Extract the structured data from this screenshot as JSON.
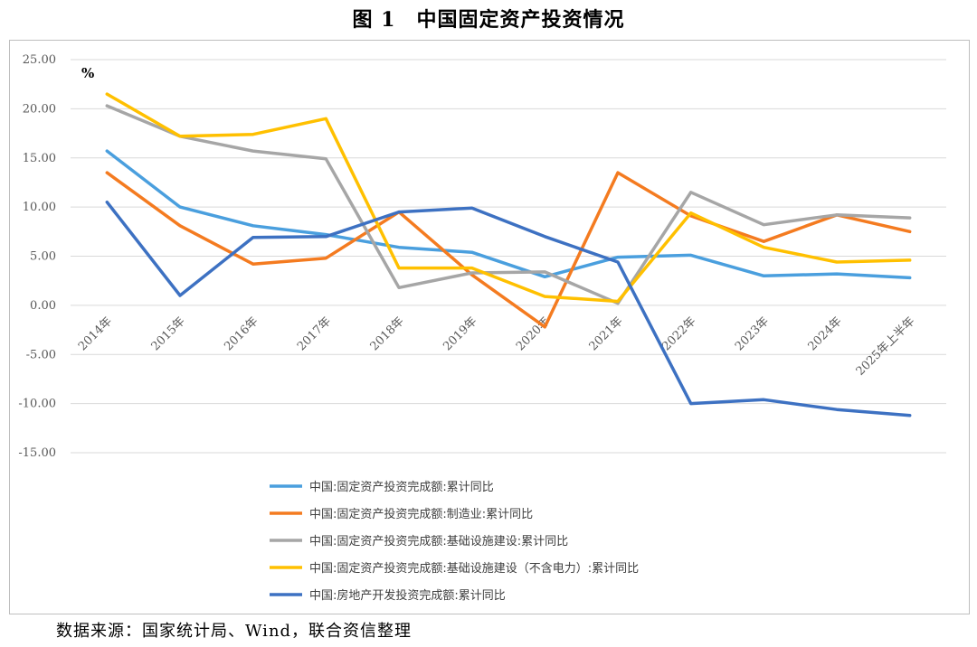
{
  "figure_title": "图 1　中国固定资产投资情况",
  "source_note": "数据来源：国家统计局、Wind，联合资信整理",
  "chart_data": {
    "type": "line",
    "unit_label": "%",
    "ylim": [
      -15,
      25
    ],
    "ytick_labels": [
      "25.00",
      "20.00",
      "15.00",
      "10.00",
      "5.00",
      "0.00",
      "-5.00",
      "-10.00",
      "-15.00"
    ],
    "ytick_values": [
      25,
      20,
      15,
      10,
      5,
      0,
      -5,
      -10,
      -15
    ],
    "categories": [
      "2014年",
      "2015年",
      "2016年",
      "2017年",
      "2018年",
      "2019年",
      "2020年",
      "2021年",
      "2022年",
      "2023年",
      "2024年",
      "2025年上半年"
    ],
    "grid": true,
    "legend_position": "bottom",
    "series": [
      {
        "name": "中国:固定资产投资完成额:累计同比",
        "color": "#4a9fde",
        "values": [
          15.7,
          10.0,
          8.1,
          7.2,
          5.9,
          5.4,
          2.9,
          4.9,
          5.1,
          3.0,
          3.2,
          2.8
        ]
      },
      {
        "name": "中国:固定资产投资完成额:制造业:累计同比",
        "color": "#f47b20",
        "values": [
          13.5,
          8.1,
          4.2,
          4.8,
          9.5,
          3.1,
          -2.2,
          13.5,
          9.1,
          6.5,
          9.2,
          7.5
        ]
      },
      {
        "name": "中国:固定资产投资完成额:基础设施建设:累计同比",
        "color": "#a6a6a6",
        "values": [
          20.3,
          17.2,
          15.7,
          14.9,
          1.8,
          3.3,
          3.4,
          0.2,
          11.5,
          8.2,
          9.2,
          8.9
        ]
      },
      {
        "name": "中国:固定资产投资完成额:基础设施建设（不含电力）:累计同比",
        "color": "#ffc000",
        "values": [
          21.5,
          17.2,
          17.4,
          19.0,
          3.8,
          3.8,
          0.9,
          0.4,
          9.4,
          5.9,
          4.4,
          4.6
        ]
      },
      {
        "name": "中国:房地产开发投资完成额:累计同比",
        "color": "#3d71c2",
        "values": [
          10.5,
          1.0,
          6.9,
          7.0,
          9.5,
          9.9,
          7.0,
          4.4,
          -10.0,
          -9.6,
          -10.6,
          -11.2
        ]
      }
    ]
  }
}
